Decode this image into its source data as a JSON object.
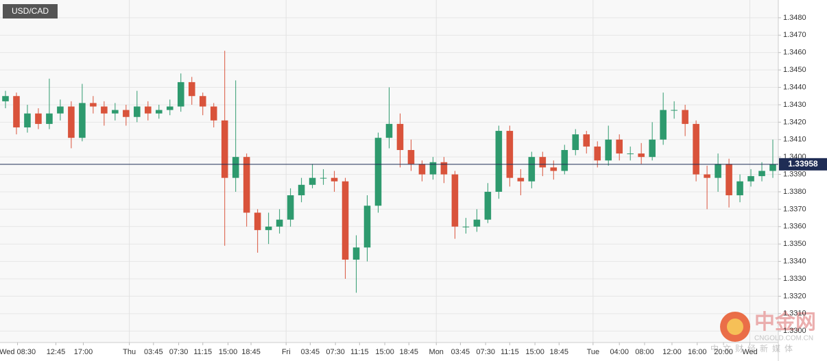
{
  "chart_data": {
    "type": "candlestick",
    "title": "USD/CAD",
    "x": [
      0,
      1,
      2,
      3,
      4,
      5,
      6,
      7,
      8,
      9,
      10,
      11,
      12,
      13,
      14,
      15,
      16,
      17,
      18,
      19,
      20,
      21,
      22,
      23,
      24,
      25,
      26,
      27,
      28,
      29,
      30,
      31,
      32,
      33,
      34,
      35,
      36,
      37,
      38,
      39,
      40,
      41,
      42,
      43,
      44,
      45,
      46,
      47,
      48,
      49,
      50,
      51,
      52,
      53,
      54,
      55,
      56,
      57,
      58,
      59,
      60,
      61,
      62,
      63,
      64,
      65,
      66,
      67,
      68,
      69,
      70
    ],
    "open": [
      1.3432,
      1.3435,
      1.3417,
      1.3425,
      1.3419,
      1.3425,
      1.3429,
      1.3411,
      1.3431,
      1.3429,
      1.3425,
      1.3427,
      1.3423,
      1.3429,
      1.3425,
      1.3427,
      1.3429,
      1.3443,
      1.3435,
      1.3429,
      1.3421,
      1.3388,
      1.34,
      1.3368,
      1.3358,
      1.336,
      1.3364,
      1.3378,
      1.3384,
      1.3388,
      1.3388,
      1.3386,
      1.3341,
      1.3348,
      1.3372,
      1.3411,
      1.3419,
      1.3404,
      1.3396,
      1.339,
      1.3397,
      1.339,
      1.336,
      1.336,
      1.3364,
      1.338,
      1.3415,
      1.3388,
      1.3386,
      1.34,
      1.3394,
      1.3392,
      1.3404,
      1.3413,
      1.3406,
      1.3398,
      1.341,
      1.3402,
      1.3402,
      1.34,
      1.341,
      1.3427,
      1.3427,
      1.3419,
      1.339,
      1.3388,
      1.3396,
      1.3378,
      1.3386,
      1.3389,
      1.3392
    ],
    "high": [
      1.3438,
      1.3437,
      1.343,
      1.3428,
      1.3445,
      1.3433,
      1.3432,
      1.3442,
      1.3435,
      1.3432,
      1.3431,
      1.343,
      1.3438,
      1.3432,
      1.343,
      1.3433,
      1.3448,
      1.3446,
      1.3437,
      1.3431,
      1.3461,
      1.3444,
      1.3402,
      1.337,
      1.3368,
      1.337,
      1.3382,
      1.3388,
      1.3396,
      1.3393,
      1.3392,
      1.3388,
      1.3355,
      1.3378,
      1.3414,
      1.344,
      1.3425,
      1.341,
      1.3398,
      1.34,
      1.34,
      1.3392,
      1.3365,
      1.337,
      1.3385,
      1.3418,
      1.3418,
      1.3393,
      1.3403,
      1.3403,
      1.3398,
      1.3407,
      1.3416,
      1.3415,
      1.3409,
      1.3418,
      1.3413,
      1.3406,
      1.3408,
      1.342,
      1.3437,
      1.3432,
      1.343,
      1.3421,
      1.3395,
      1.3402,
      1.3399,
      1.339,
      1.3393,
      1.3397,
      1.341
    ],
    "low": [
      1.3428,
      1.3413,
      1.3414,
      1.3416,
      1.3416,
      1.3421,
      1.3405,
      1.3409,
      1.3425,
      1.3418,
      1.3421,
      1.3418,
      1.342,
      1.3421,
      1.3422,
      1.3424,
      1.3426,
      1.343,
      1.3424,
      1.3417,
      1.3349,
      1.338,
      1.336,
      1.3345,
      1.335,
      1.3356,
      1.336,
      1.3374,
      1.3382,
      1.3384,
      1.338,
      1.333,
      1.3322,
      1.334,
      1.3368,
      1.3405,
      1.3394,
      1.3392,
      1.3386,
      1.3387,
      1.3385,
      1.3353,
      1.3356,
      1.3357,
      1.3362,
      1.3376,
      1.3383,
      1.3378,
      1.3382,
      1.3389,
      1.3387,
      1.339,
      1.3401,
      1.3402,
      1.3394,
      1.3395,
      1.3398,
      1.3398,
      1.3396,
      1.3398,
      1.3407,
      1.3422,
      1.3412,
      1.3386,
      1.337,
      1.338,
      1.3371,
      1.3374,
      1.3383,
      1.3386,
      1.3388
    ],
    "close": [
      1.3435,
      1.3417,
      1.3425,
      1.3419,
      1.3425,
      1.3429,
      1.3411,
      1.3431,
      1.3429,
      1.3425,
      1.3427,
      1.3423,
      1.3429,
      1.3425,
      1.3427,
      1.3429,
      1.3443,
      1.3435,
      1.3429,
      1.3421,
      1.3388,
      1.34,
      1.3368,
      1.3358,
      1.336,
      1.3364,
      1.3378,
      1.3384,
      1.3388,
      1.3388,
      1.3386,
      1.3341,
      1.3348,
      1.3372,
      1.3411,
      1.3419,
      1.3404,
      1.3396,
      1.339,
      1.3397,
      1.339,
      1.336,
      1.336,
      1.3364,
      1.338,
      1.3415,
      1.3388,
      1.3386,
      1.34,
      1.3394,
      1.3392,
      1.3404,
      1.3413,
      1.3406,
      1.3398,
      1.341,
      1.3402,
      1.3402,
      1.34,
      1.341,
      1.3427,
      1.3427,
      1.3419,
      1.339,
      1.3388,
      1.3396,
      1.3378,
      1.3386,
      1.3389,
      1.3392,
      1.33958
    ],
    "up_color": "#2e9a6e",
    "down_color": "#d9533b",
    "last_price": 1.33958,
    "last_price_color": "#1f2d55",
    "xlim": [
      -0.5,
      70.5
    ],
    "xticks": [
      {
        "value": 1.1,
        "label": "Wed 08:30"
      },
      {
        "value": 4.6,
        "label": "12:45"
      },
      {
        "value": 7.1,
        "label": "17:00"
      },
      {
        "value": 11.3,
        "label": "Thu"
      },
      {
        "value": 13.5,
        "label": "03:45"
      },
      {
        "value": 15.8,
        "label": "07:30"
      },
      {
        "value": 18.0,
        "label": "11:15"
      },
      {
        "value": 20.3,
        "label": "15:00"
      },
      {
        "value": 22.4,
        "label": "18:45"
      },
      {
        "value": 25.6,
        "label": "Fri"
      },
      {
        "value": 27.8,
        "label": "03:45"
      },
      {
        "value": 30.1,
        "label": "07:30"
      },
      {
        "value": 32.3,
        "label": "11:15"
      },
      {
        "value": 34.6,
        "label": "15:00"
      },
      {
        "value": 36.8,
        "label": "18:45"
      },
      {
        "value": 39.3,
        "label": "Mon"
      },
      {
        "value": 41.5,
        "label": "03:45"
      },
      {
        "value": 43.8,
        "label": "07:30"
      },
      {
        "value": 46.0,
        "label": "11:15"
      },
      {
        "value": 48.3,
        "label": "15:00"
      },
      {
        "value": 50.5,
        "label": "18:45"
      },
      {
        "value": 53.6,
        "label": "Tue"
      },
      {
        "value": 56.0,
        "label": "04:00"
      },
      {
        "value": 58.3,
        "label": "08:00"
      },
      {
        "value": 60.8,
        "label": "12:00"
      },
      {
        "value": 63.1,
        "label": "16:00"
      },
      {
        "value": 65.5,
        "label": "20:00"
      },
      {
        "value": 67.9,
        "label": "Wed"
      }
    ],
    "ylim": [
      1.32934,
      1.34902
    ],
    "yticks": [
      {
        "value": 1.33,
        "label": "1.3300"
      },
      {
        "value": 1.331,
        "label": "1.3310"
      },
      {
        "value": 1.332,
        "label": "1.3320"
      },
      {
        "value": 1.333,
        "label": "1.3330"
      },
      {
        "value": 1.334,
        "label": "1.3340"
      },
      {
        "value": 1.335,
        "label": "1.3350"
      },
      {
        "value": 1.336,
        "label": "1.3360"
      },
      {
        "value": 1.337,
        "label": "1.3370"
      },
      {
        "value": 1.338,
        "label": "1.3380"
      },
      {
        "value": 1.339,
        "label": "1.3390"
      },
      {
        "value": 1.34,
        "label": "1.3400"
      },
      {
        "value": 1.341,
        "label": "1.3410"
      },
      {
        "value": 1.342,
        "label": "1.3420"
      },
      {
        "value": 1.343,
        "label": "1.3430"
      },
      {
        "value": 1.344,
        "label": "1.3440"
      },
      {
        "value": 1.345,
        "label": "1.3450"
      },
      {
        "value": 1.346,
        "label": "1.3460"
      },
      {
        "value": 1.347,
        "label": "1.3470"
      },
      {
        "value": 1.348,
        "label": "1.3480"
      }
    ],
    "grid": true
  },
  "watermark": {
    "name": "中金网",
    "site": "CNGOLD.COM.CN",
    "slogan": "中文财经新媒体"
  }
}
